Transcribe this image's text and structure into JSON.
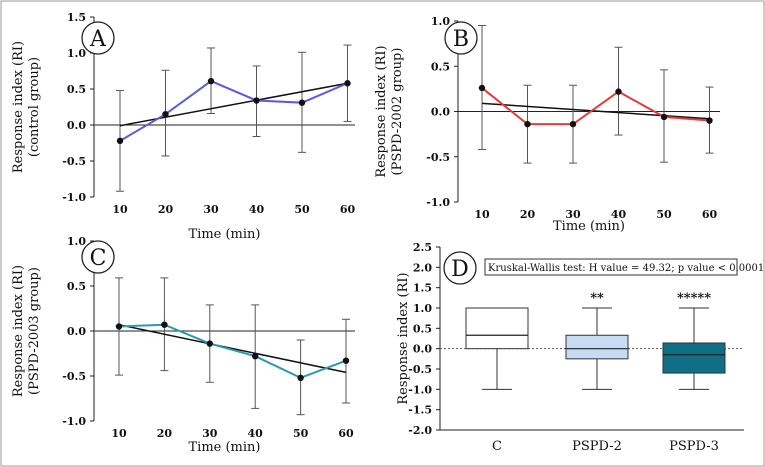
{
  "chart_data": [
    {
      "type": "line",
      "panel": "A",
      "ylabel": [
        "Response index (RI)",
        "(control group)"
      ],
      "xlabel": "Time (min)",
      "x": [
        10,
        20,
        30,
        40,
        50,
        60
      ],
      "xticks": [
        "10",
        "20",
        "30",
        "40",
        "50",
        "60"
      ],
      "ylim": [
        -1.0,
        1.5
      ],
      "yticks": [
        "-1.0",
        "-0.5",
        "0.0",
        "0.5",
        "1.0",
        "1.5"
      ],
      "series": [
        {
          "name": "control group",
          "color": "#5b5bdc",
          "values": [
            -0.22,
            0.15,
            0.61,
            0.34,
            0.31,
            0.58
          ],
          "err_low": [
            -0.92,
            -0.43,
            0.16,
            -0.16,
            -0.38,
            0.05
          ],
          "err_high": [
            0.48,
            0.76,
            1.07,
            0.82,
            1.01,
            1.11
          ]
        }
      ],
      "trend": [
        -0.01,
        0.58
      ]
    },
    {
      "type": "line",
      "panel": "B",
      "ylabel": [
        "Response index (RI)",
        "(PSPD-2002 group)"
      ],
      "xlabel": "Time (min)",
      "x": [
        10,
        20,
        30,
        40,
        50,
        60
      ],
      "xticks": [
        "10",
        "20",
        "30",
        "40",
        "50",
        "60"
      ],
      "ylim": [
        -1.0,
        1.0
      ],
      "yticks": [
        "-1.0",
        "-0.5",
        "0.0",
        "0.5",
        "1.0"
      ],
      "series": [
        {
          "name": "PSPD-2002 group",
          "color": "#e23b3b",
          "values": [
            0.26,
            -0.14,
            -0.14,
            0.22,
            -0.06,
            -0.1
          ],
          "err_low": [
            -0.42,
            -0.57,
            -0.57,
            -0.26,
            -0.56,
            -0.46
          ],
          "err_high": [
            0.95,
            0.29,
            0.29,
            0.71,
            0.46,
            0.27
          ]
        }
      ],
      "trend": [
        0.09,
        -0.08
      ]
    },
    {
      "type": "line",
      "panel": "C",
      "ylabel": [
        "Response index (RI)",
        "(PSPD-2003 group)"
      ],
      "xlabel": "Time (min)",
      "x": [
        10,
        20,
        30,
        40,
        50,
        60
      ],
      "xticks": [
        "10",
        "20",
        "30",
        "40",
        "50",
        "60"
      ],
      "ylim": [
        -1.0,
        1.0
      ],
      "yticks": [
        "-1.0",
        "-0.5",
        "0.0",
        "0.5",
        "1.0"
      ],
      "series": [
        {
          "name": "PSPD-2003 group",
          "color": "#2a9aae",
          "values": [
            0.05,
            0.07,
            -0.14,
            -0.28,
            -0.52,
            -0.33
          ],
          "err_low": [
            -0.49,
            -0.44,
            -0.57,
            -0.86,
            -0.93,
            -0.8
          ],
          "err_high": [
            0.59,
            0.59,
            0.29,
            0.29,
            -0.1,
            0.13
          ]
        }
      ],
      "trend": [
        0.07,
        -0.46
      ]
    },
    {
      "type": "box",
      "panel": "D",
      "ylabel": "Response index (RI)",
      "categories": [
        "C",
        "PSPD-2",
        "PSPD-3"
      ],
      "ylim": [
        -2.0,
        2.5
      ],
      "yticks": [
        "-2.0",
        "-1.5",
        "-1.0",
        "-0.5",
        "0.0",
        "0.5",
        "1.0",
        "1.5",
        "2.0",
        "2.5"
      ],
      "annotation": "Kruskal-Wallis test: H value =  49.32; p value < 0.0001",
      "boxes": [
        {
          "name": "C",
          "min": -1.0,
          "q1": 0.0,
          "median": 0.33,
          "q3": 1.0,
          "max": 1.0,
          "fill": "#ffffff",
          "sig": ""
        },
        {
          "name": "PSPD-2",
          "min": -1.0,
          "q1": -0.25,
          "median": 0.0,
          "q3": 0.33,
          "max": 1.0,
          "fill": "#c7dcf4",
          "sig": "**"
        },
        {
          "name": "PSPD-3",
          "min": -1.0,
          "q1": -0.6,
          "median": -0.15,
          "q3": 0.14,
          "max": 1.0,
          "fill": "#0e6f86",
          "sig": "*****"
        }
      ]
    }
  ]
}
